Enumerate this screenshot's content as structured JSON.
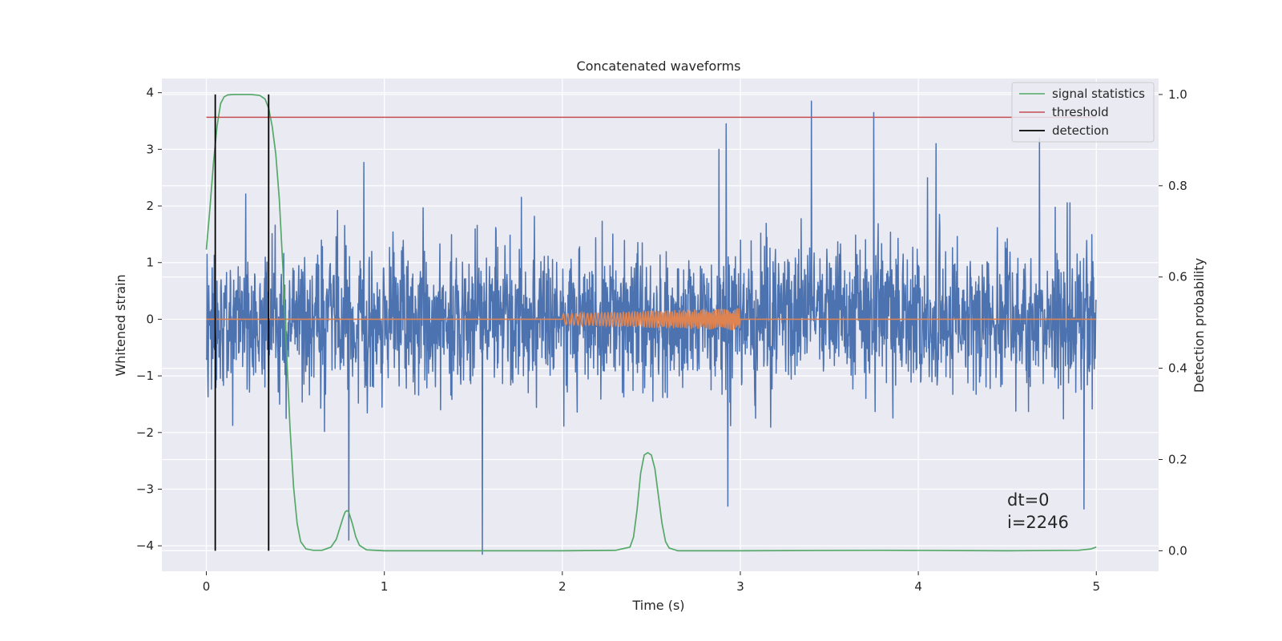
{
  "chart_data": {
    "type": "line",
    "title": "Concatenated waveforms",
    "xlabel": "Time (s)",
    "ylabel": "Whitened strain",
    "ylabel_right": "Detection probability",
    "xlim": [
      -0.25,
      5.35
    ],
    "ylim": [
      -4.45,
      4.25
    ],
    "ylim_right": [
      -0.045,
      1.035
    ],
    "x_ticks": [
      0,
      1,
      2,
      3,
      4,
      5
    ],
    "y_ticks": [
      -4,
      -3,
      -2,
      -1,
      0,
      1,
      2,
      3,
      4
    ],
    "y_ticks_right": [
      0.0,
      0.2,
      0.4,
      0.6,
      0.8,
      1.0
    ],
    "x_tick_labels": [
      "0",
      "1",
      "2",
      "3",
      "4",
      "5"
    ],
    "y_tick_labels": [
      "−4",
      "−3",
      "−2",
      "−1",
      "0",
      "1",
      "2",
      "3",
      "4"
    ],
    "y_tick_labels_right": [
      "0.0",
      "0.2",
      "0.4",
      "0.6",
      "0.8",
      "1.0"
    ],
    "grid": true,
    "legend_position": "top-right",
    "series": [
      {
        "name": "",
        "axis": "left",
        "color": "#4c72b0",
        "style": "noise",
        "x_range": [
          0,
          5
        ],
        "amplitude_sigma": 0.62,
        "typical_range": [
          -2.5,
          3.0
        ],
        "peaks": [
          {
            "x": 3.4,
            "y": 3.85
          },
          {
            "x": 3.75,
            "y": 3.65
          },
          {
            "x": 2.92,
            "y": 3.45
          },
          {
            "x": 4.68,
            "y": 3.2
          },
          {
            "x": 4.1,
            "y": 3.1
          },
          {
            "x": 1.55,
            "y": -4.15
          },
          {
            "x": 0.8,
            "y": -3.9
          },
          {
            "x": 4.93,
            "y": -3.35
          },
          {
            "x": 2.93,
            "y": -3.3
          }
        ]
      },
      {
        "name": "",
        "axis": "left",
        "color": "#dd8452",
        "style": "injection",
        "x_range": [
          0,
          5
        ],
        "chirp_start": 2.0,
        "chirp_end": 3.0,
        "amplitude_start": 0.1,
        "amplitude_end": 0.2
      },
      {
        "name": "signal statistics",
        "axis": "right",
        "color": "#55a868",
        "x": [
          0,
          0.02,
          0.04,
          0.06,
          0.08,
          0.1,
          0.12,
          0.15,
          0.2,
          0.25,
          0.3,
          0.33,
          0.35,
          0.37,
          0.39,
          0.41,
          0.43,
          0.45,
          0.47,
          0.49,
          0.51,
          0.53,
          0.56,
          0.6,
          0.65,
          0.7,
          0.73,
          0.75,
          0.77,
          0.78,
          0.79,
          0.8,
          0.82,
          0.84,
          0.86,
          0.9,
          1.0,
          1.5,
          2.0,
          2.3,
          2.38,
          2.4,
          2.42,
          2.44,
          2.46,
          2.48,
          2.5,
          2.52,
          2.54,
          2.56,
          2.58,
          2.6,
          2.65,
          3.0,
          3.8,
          4.5,
          4.9,
          4.97,
          5.0
        ],
        "y": [
          0.66,
          0.75,
          0.85,
          0.93,
          0.98,
          0.995,
          0.999,
          1.0,
          1.0,
          1.0,
          0.998,
          0.99,
          0.97,
          0.93,
          0.87,
          0.77,
          0.62,
          0.44,
          0.27,
          0.14,
          0.06,
          0.02,
          0.004,
          0.001,
          0.001,
          0.008,
          0.025,
          0.05,
          0.075,
          0.085,
          0.088,
          0.085,
          0.06,
          0.03,
          0.012,
          0.002,
          0.0,
          0.0,
          0.0,
          0.001,
          0.008,
          0.03,
          0.09,
          0.17,
          0.21,
          0.215,
          0.21,
          0.18,
          0.12,
          0.06,
          0.02,
          0.006,
          0.0,
          0.0,
          0.001,
          0.0,
          0.001,
          0.004,
          0.008
        ]
      },
      {
        "name": "threshold",
        "axis": "right",
        "color": "#c44e52",
        "x": [
          0,
          5
        ],
        "y": [
          0.95,
          0.95
        ]
      },
      {
        "name": "detection",
        "axis": "right",
        "color": "#000000",
        "style": "vlines",
        "x": [
          0.05,
          0.35
        ],
        "ymin": 0.0,
        "ymax": 1.0
      }
    ],
    "annotations": [
      "dt=0",
      "i=2246"
    ]
  }
}
